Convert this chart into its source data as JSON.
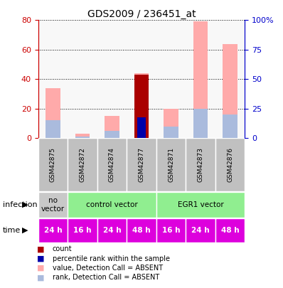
{
  "title": "GDS2009 / 236451_at",
  "samples": [
    "GSM42875",
    "GSM42872",
    "GSM42874",
    "GSM42877",
    "GSM42871",
    "GSM42873",
    "GSM42876"
  ],
  "left_yticks": [
    0,
    20,
    40,
    60,
    80
  ],
  "right_yticks": [
    0,
    25,
    50,
    75,
    100
  ],
  "right_yticklabels": [
    "0",
    "25",
    "50",
    "75",
    "100%"
  ],
  "left_ylim": [
    0,
    80
  ],
  "right_ylim": [
    0,
    100
  ],
  "pink_bar_heights": [
    34,
    3,
    15,
    44,
    20,
    79,
    64
  ],
  "lightblue_bar_heights": [
    12,
    1,
    5,
    14,
    8,
    20,
    16
  ],
  "red_bar_heights": [
    0,
    0,
    0,
    43,
    0,
    0,
    0
  ],
  "blue_bar_heights": [
    0,
    0,
    0,
    14,
    0,
    0,
    0
  ],
  "time_labels": [
    "24 h",
    "16 h",
    "24 h",
    "48 h",
    "16 h",
    "24 h",
    "48 h"
  ],
  "time_color": "#dd00dd",
  "sample_bg_color": "#c0c0c0",
  "bar_width": 0.5,
  "pink_color": "#ffaaaa",
  "lightblue_color": "#aabbdd",
  "red_color": "#aa0000",
  "blue_color": "#0000aa",
  "left_axis_color": "#cc0000",
  "right_axis_color": "#0000cc",
  "no_vector_bg": "#c8c8c8",
  "control_bg": "#90ee90",
  "egr1_bg": "#90ee90",
  "infection_data": [
    {
      "start": 0,
      "end": 1,
      "color": "#c8c8c8",
      "label": "no\nvector"
    },
    {
      "start": 1,
      "end": 4,
      "color": "#90ee90",
      "label": "control vector"
    },
    {
      "start": 4,
      "end": 7,
      "color": "#90ee90",
      "label": "EGR1 vector"
    }
  ],
  "legend_items": [
    {
      "color": "#aa0000",
      "label": "count"
    },
    {
      "color": "#0000aa",
      "label": "percentile rank within the sample"
    },
    {
      "color": "#ffaaaa",
      "label": "value, Detection Call = ABSENT"
    },
    {
      "color": "#aabbdd",
      "label": "rank, Detection Call = ABSENT"
    }
  ]
}
